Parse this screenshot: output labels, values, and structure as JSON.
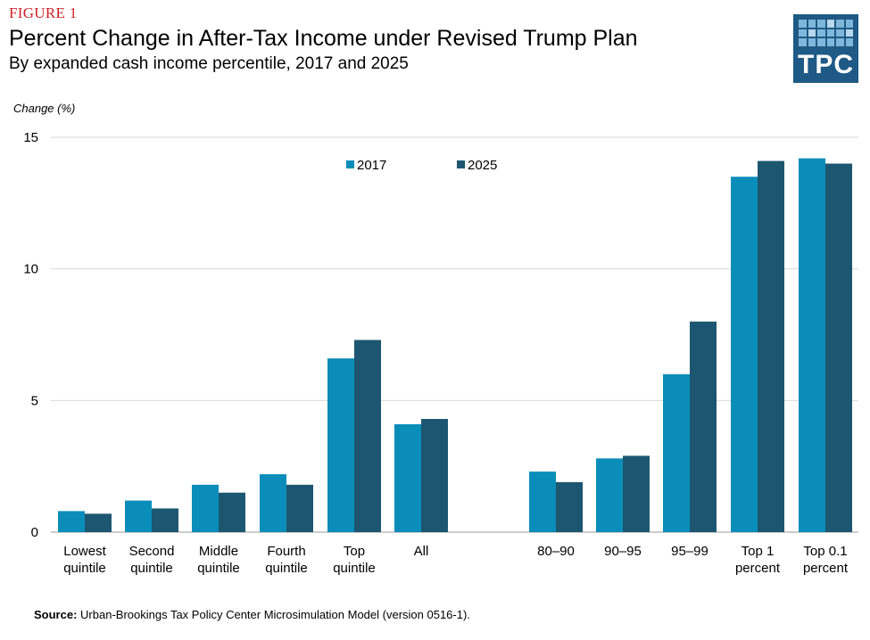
{
  "header": {
    "figure_label": "FIGURE 1",
    "title": "Percent Change in After-Tax Income under Revised Trump Plan",
    "subtitle": "By expanded cash income percentile, 2017 and 2025"
  },
  "logo": {
    "text": "TPC",
    "color": "#1e5a85"
  },
  "source": {
    "label": "Source:",
    "text": "Urban-Brookings  Tax Policy Center  Microsimulation  Model  (version  0516-1)."
  },
  "chart_data": {
    "type": "bar",
    "ylabel": "Change  (%)",
    "ylim": [
      0,
      15
    ],
    "yticks": [
      0,
      5,
      10,
      15
    ],
    "grid": true,
    "legend_position": "top-center",
    "categories": [
      [
        "Lowest",
        "quintile"
      ],
      [
        "Second",
        "quintile"
      ],
      [
        "Middle",
        "quintile"
      ],
      [
        "Fourth",
        "quintile"
      ],
      [
        "Top",
        "quintile"
      ],
      [
        "All"
      ],
      [
        "80–90"
      ],
      [
        "90–95"
      ],
      [
        "95–99"
      ],
      [
        "Top 1",
        "percent"
      ],
      [
        "Top 0.1",
        "percent"
      ]
    ],
    "series": [
      {
        "name": "2017",
        "color": "#0a8db9",
        "values": [
          0.8,
          1.2,
          1.8,
          2.2,
          6.6,
          4.1,
          2.3,
          2.8,
          6.0,
          13.5,
          14.2
        ]
      },
      {
        "name": "2025",
        "color": "#1d5670",
        "values": [
          0.7,
          0.9,
          1.5,
          1.8,
          7.3,
          4.3,
          1.9,
          2.9,
          8.0,
          14.1,
          14.0
        ]
      }
    ]
  }
}
